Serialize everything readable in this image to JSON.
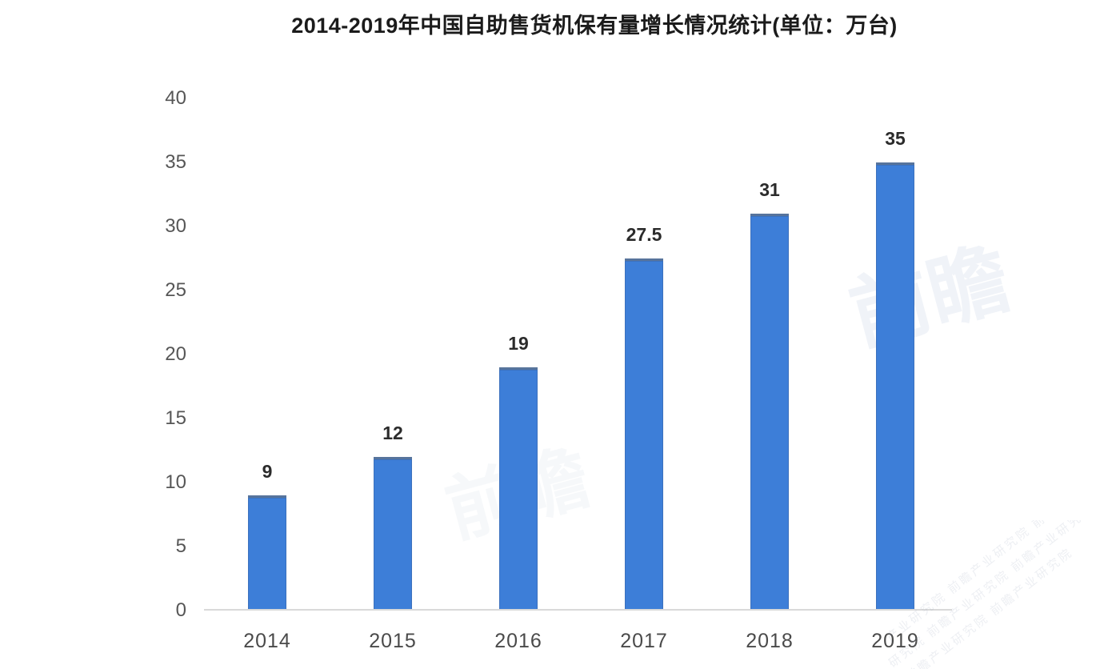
{
  "title": "2014-2019年中国自助售货机保有量增长情况统计(单位：万台)",
  "chart_data": {
    "type": "bar",
    "title": "2014-2019年中国自助售货机保有量增长情况统计(单位：万台)",
    "categories": [
      "2014",
      "2015",
      "2016",
      "2017",
      "2018",
      "2019"
    ],
    "values": [
      9,
      12,
      19,
      27.5,
      31,
      35
    ],
    "value_labels": [
      "9",
      "12",
      "19",
      "27.5",
      "31",
      "35"
    ],
    "unit": "万台",
    "xlabel": "",
    "ylabel": "",
    "ylim": [
      0,
      40
    ],
    "ytick_step": 5,
    "yticks": [
      "0",
      "5",
      "10",
      "15",
      "20",
      "25",
      "30",
      "35",
      "40"
    ],
    "grid": false,
    "legend": "none",
    "bar_color": "#3d7ed8"
  },
  "colors": {
    "bar": "#3d7ed8",
    "bar_edge": "#57749c",
    "title_text": "#1b1b1b",
    "tick_label": "#565656",
    "x_label": "#4a4a4a",
    "value_label": "#2b2b2b",
    "baseline": "#d9d9d9",
    "background": "#ffffff",
    "watermark": "#96a8c4"
  },
  "watermark": {
    "logo": "前瞻",
    "text": "前瞻产业研究院"
  }
}
